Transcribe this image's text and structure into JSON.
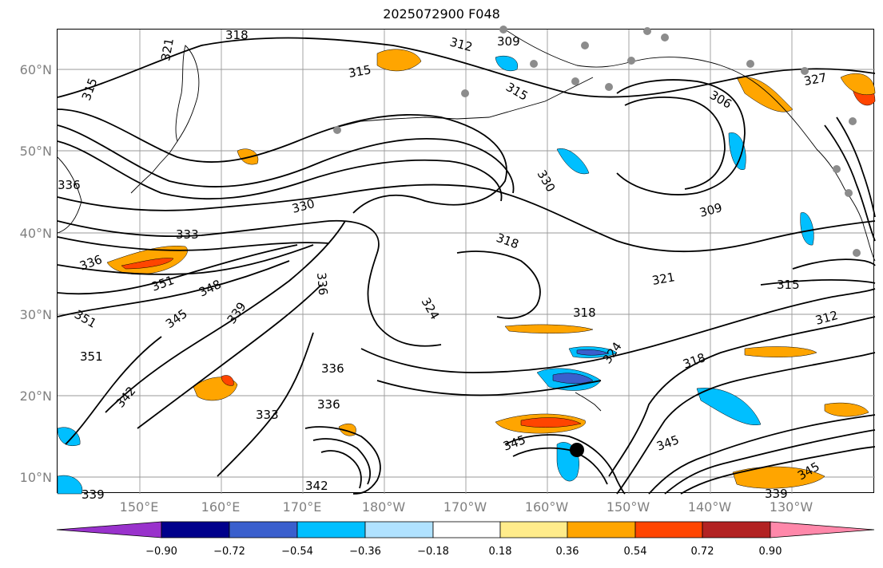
{
  "title": "2025072900 F048",
  "lat_labels": [
    "60°N",
    "50°N",
    "40°N",
    "30°N",
    "20°N",
    "10°N"
  ],
  "lon_labels": [
    "150°E",
    "160°E",
    "170°E",
    "180°W",
    "170°W",
    "160°W",
    "150°W",
    "140°W",
    "130°W"
  ],
  "colorbar": {
    "colors": [
      "#9932cc",
      "#00008b",
      "#3a5fcd",
      "#00bfff",
      "#b0e2ff",
      "#ffffff",
      "#ffec8b",
      "#ffa500",
      "#ff4500",
      "#b22222",
      "#ff88aa"
    ],
    "ticks": [
      "−0.90",
      "−0.72",
      "−0.54",
      "−0.36",
      "−0.18",
      "0.18",
      "0.36",
      "0.54",
      "0.72",
      "0.90"
    ]
  },
  "contour_labels": [
    "318",
    "312",
    "309",
    "321",
    "315",
    "315",
    "315",
    "306",
    "327",
    "330",
    "330",
    "333",
    "336",
    "336",
    "336",
    "318",
    "321",
    "309",
    "351",
    "348",
    "345",
    "339",
    "351",
    "351",
    "324",
    "318",
    "324",
    "318",
    "315",
    "312",
    "342",
    "336",
    "336",
    "333",
    "345",
    "345",
    "345",
    "339",
    "342",
    "339"
  ]
}
